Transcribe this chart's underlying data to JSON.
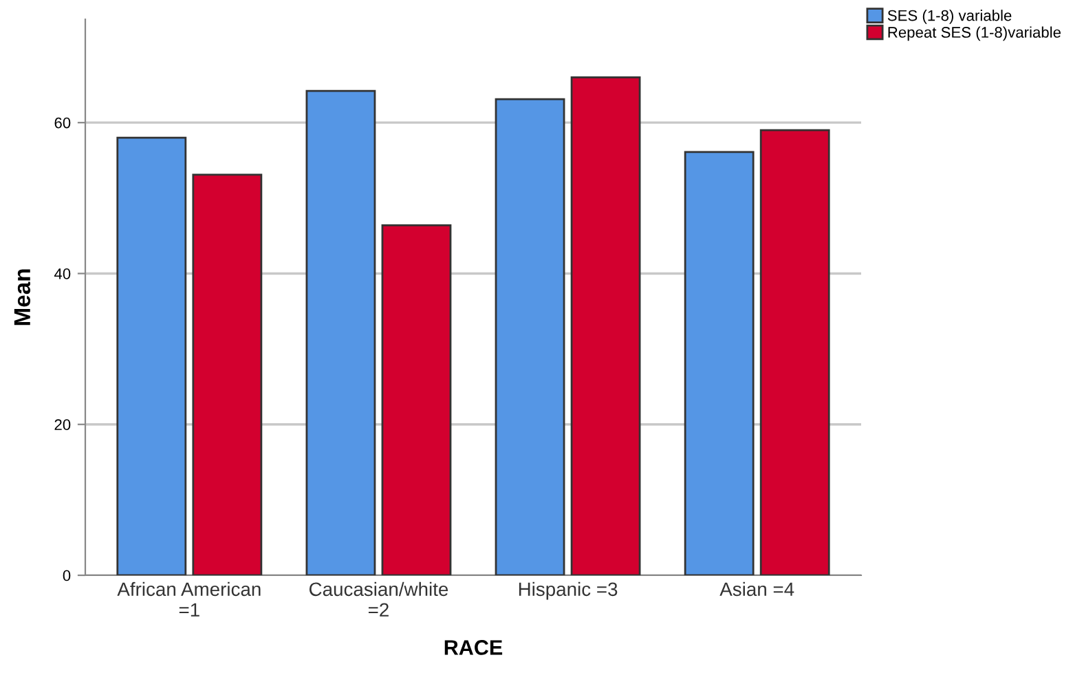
{
  "chart_data": {
    "type": "bar",
    "xlabel": "RACE",
    "ylabel": "Mean",
    "categories": [
      "African American\n=1",
      "Caucasian/white\n=2",
      "Hispanic =3",
      "Asian =4"
    ],
    "series": [
      {
        "name": "SES (1-8) variable",
        "color": "#5596e5",
        "values": [
          58.0,
          64.2,
          63.1,
          56.1
        ]
      },
      {
        "name": "Repeat SES (1-8)variable",
        "color": "#d3002f",
        "values": [
          53.1,
          46.4,
          66.0,
          59.0
        ]
      }
    ],
    "ylim": [
      0,
      73.7
    ],
    "yticks": [
      0,
      20,
      40,
      60
    ],
    "grid": "y",
    "legend": "top right"
  }
}
